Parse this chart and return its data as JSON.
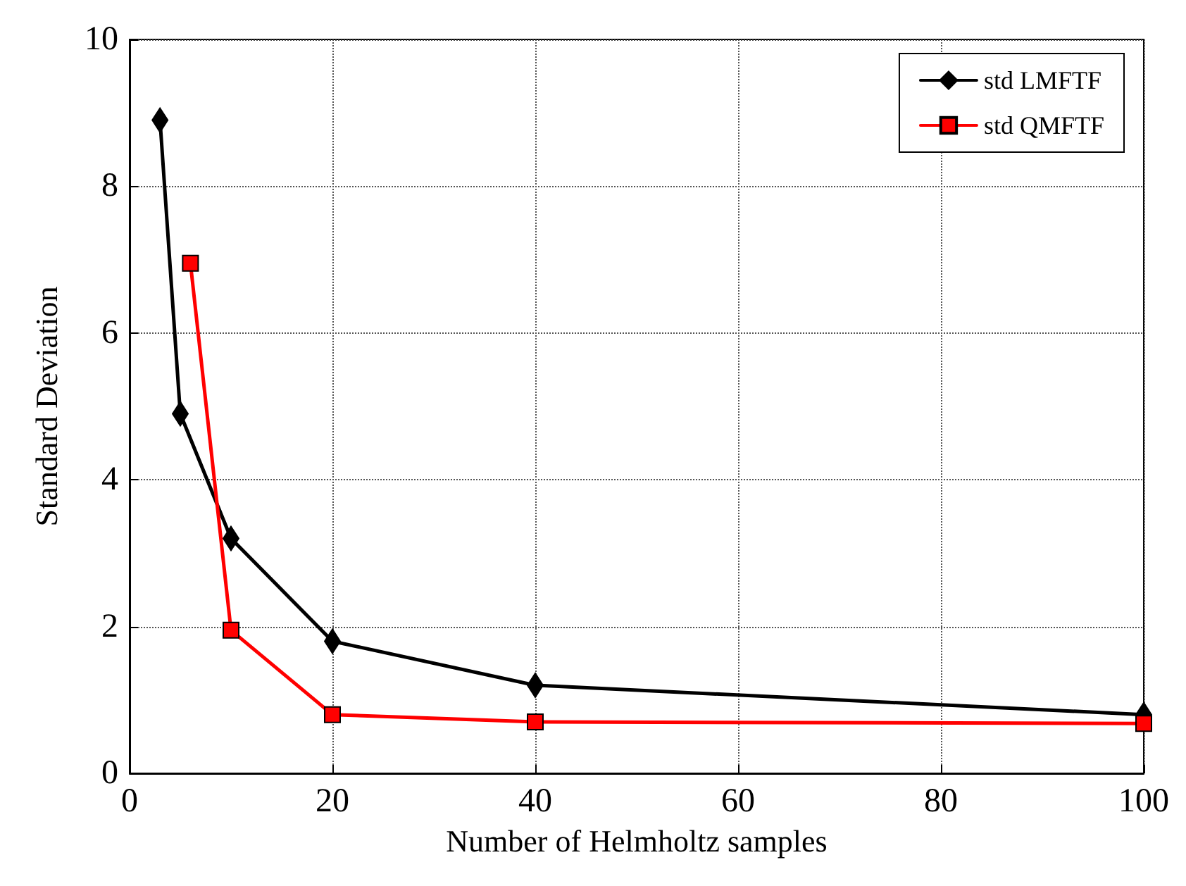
{
  "chart_data": {
    "type": "line",
    "xlabel": "Number of Helmholtz samples",
    "ylabel": "Standard Deviation",
    "xlim": [
      0,
      100
    ],
    "xticks": [
      0,
      20,
      40,
      60,
      80,
      100
    ],
    "ylim": [
      0,
      10
    ],
    "yticks": [
      0,
      2,
      4,
      6,
      8,
      10
    ],
    "grid": true,
    "legend": "top right",
    "line_style": "solid",
    "series": [
      {
        "name": "std LMFTF",
        "color": "#000000",
        "marker": "diamond",
        "x": [
          3,
          5,
          10,
          20,
          40,
          100
        ],
        "values": [
          8.9,
          4.9,
          3.2,
          1.8,
          1.2,
          0.8
        ]
      },
      {
        "name": "std QMFTF",
        "color": "#ff0000",
        "marker": "square",
        "x": [
          6,
          10,
          20,
          40,
          100
        ],
        "values": [
          6.95,
          1.95,
          0.8,
          0.7,
          0.68
        ]
      }
    ]
  }
}
